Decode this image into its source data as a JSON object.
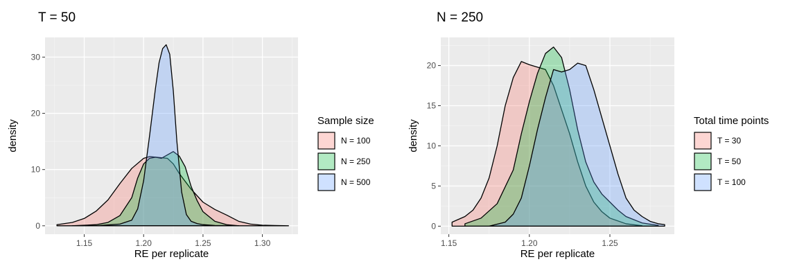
{
  "colors": {
    "panel_bg": "#ebebeb",
    "grid_major": "#ffffff",
    "grid_minor": "#f5f5f5",
    "tick": "#333333",
    "outline": "#000000",
    "series": [
      "#f8766d",
      "#00ba38",
      "#619cff"
    ],
    "fill_opacity": 0.3
  },
  "chart_data": [
    {
      "type": "area",
      "subtype": "density",
      "title": "T = 50",
      "xlabel": "RE per replicate",
      "ylabel": "density",
      "xlim": [
        1.117,
        1.33
      ],
      "ylim": [
        -1.5,
        33.5
      ],
      "xticks": [
        1.15,
        1.2,
        1.25,
        1.3
      ],
      "xtick_labels": [
        "1.15",
        "1.20",
        "1.25",
        "1.30"
      ],
      "yticks": [
        0,
        10,
        20,
        30
      ],
      "ytick_labels": [
        "0",
        "10",
        "20",
        "30"
      ],
      "grid": true,
      "legend": {
        "title": "Sample size",
        "position": "right"
      },
      "series": [
        {
          "name": "N = 100",
          "x": [
            1.127,
            1.14,
            1.15,
            1.16,
            1.17,
            1.18,
            1.19,
            1.2,
            1.205,
            1.21,
            1.215,
            1.22,
            1.225,
            1.23,
            1.24,
            1.25,
            1.26,
            1.27,
            1.28,
            1.29,
            1.3,
            1.31,
            1.322
          ],
          "y": [
            0.2,
            0.6,
            1.3,
            2.6,
            4.6,
            7.5,
            10.2,
            12.0,
            12.3,
            12.2,
            12.1,
            12.0,
            11.0,
            9.3,
            6.5,
            4.2,
            2.9,
            1.9,
            0.8,
            0.3,
            0.1,
            0.05,
            0.0
          ]
        },
        {
          "name": "N = 250",
          "x": [
            1.14,
            1.16,
            1.17,
            1.18,
            1.19,
            1.195,
            1.2,
            1.205,
            1.21,
            1.215,
            1.22,
            1.225,
            1.23,
            1.235,
            1.24,
            1.245,
            1.25,
            1.26,
            1.27,
            1.28
          ],
          "y": [
            0.0,
            0.2,
            0.6,
            1.8,
            5.0,
            8.5,
            11.0,
            12.0,
            12.2,
            12.0,
            12.6,
            13.2,
            12.4,
            10.5,
            7.0,
            4.5,
            2.5,
            0.8,
            0.2,
            0.0
          ]
        },
        {
          "name": "N = 500",
          "x": [
            1.16,
            1.18,
            1.19,
            1.195,
            1.2,
            1.205,
            1.21,
            1.213,
            1.216,
            1.219,
            1.222,
            1.225,
            1.228,
            1.232,
            1.236,
            1.24,
            1.245,
            1.25,
            1.26,
            1.28
          ],
          "y": [
            0.0,
            0.3,
            1.0,
            3.0,
            8.0,
            16.0,
            24.5,
            29.0,
            31.5,
            32.2,
            30.5,
            24.0,
            15.0,
            6.0,
            2.0,
            0.8,
            0.4,
            0.2,
            0.05,
            0.0
          ]
        }
      ]
    },
    {
      "type": "area",
      "subtype": "density",
      "title": "N = 250",
      "xlabel": "RE per replicate",
      "ylabel": "density",
      "xlim": [
        1.145,
        1.29
      ],
      "ylim": [
        -1.0,
        23.5
      ],
      "xticks": [
        1.15,
        1.2,
        1.25
      ],
      "xtick_labels": [
        "1.15",
        "1.20",
        "1.25"
      ],
      "yticks": [
        0,
        5,
        10,
        15,
        20
      ],
      "ytick_labels": [
        "0",
        "5",
        "10",
        "15",
        "20"
      ],
      "grid": true,
      "legend": {
        "title": "Total time points",
        "position": "right"
      },
      "series": [
        {
          "name": "T = 30",
          "x": [
            1.152,
            1.16,
            1.165,
            1.17,
            1.175,
            1.18,
            1.185,
            1.19,
            1.195,
            1.2,
            1.205,
            1.21,
            1.215,
            1.22,
            1.225,
            1.23,
            1.235,
            1.24,
            1.245,
            1.25,
            1.26,
            1.27
          ],
          "y": [
            0.5,
            1.2,
            2.0,
            3.5,
            6.0,
            10.0,
            15.0,
            18.5,
            20.5,
            20.1,
            19.8,
            19.5,
            17.5,
            14.5,
            11.5,
            8.0,
            5.0,
            3.0,
            1.8,
            1.0,
            0.3,
            0.05
          ]
        },
        {
          "name": "T = 50",
          "x": [
            1.16,
            1.17,
            1.18,
            1.19,
            1.195,
            1.2,
            1.205,
            1.21,
            1.215,
            1.22,
            1.225,
            1.23,
            1.235,
            1.24,
            1.245,
            1.25,
            1.255,
            1.26,
            1.27,
            1.28
          ],
          "y": [
            0.3,
            1.0,
            2.8,
            7.0,
            11.5,
            15.5,
            19.0,
            21.5,
            22.3,
            21.0,
            17.0,
            12.0,
            8.0,
            5.5,
            4.0,
            3.0,
            2.0,
            1.2,
            0.4,
            0.1
          ]
        },
        {
          "name": "T = 100",
          "x": [
            1.175,
            1.185,
            1.19,
            1.195,
            1.2,
            1.205,
            1.21,
            1.215,
            1.22,
            1.225,
            1.23,
            1.235,
            1.24,
            1.245,
            1.25,
            1.255,
            1.26,
            1.265,
            1.27,
            1.275,
            1.28,
            1.284
          ],
          "y": [
            0.0,
            0.5,
            1.5,
            3.5,
            7.5,
            12.0,
            16.0,
            19.5,
            19.2,
            19.5,
            20.3,
            20.0,
            17.0,
            13.5,
            10.0,
            6.5,
            3.5,
            2.0,
            1.2,
            0.6,
            0.3,
            0.2
          ]
        }
      ]
    }
  ]
}
